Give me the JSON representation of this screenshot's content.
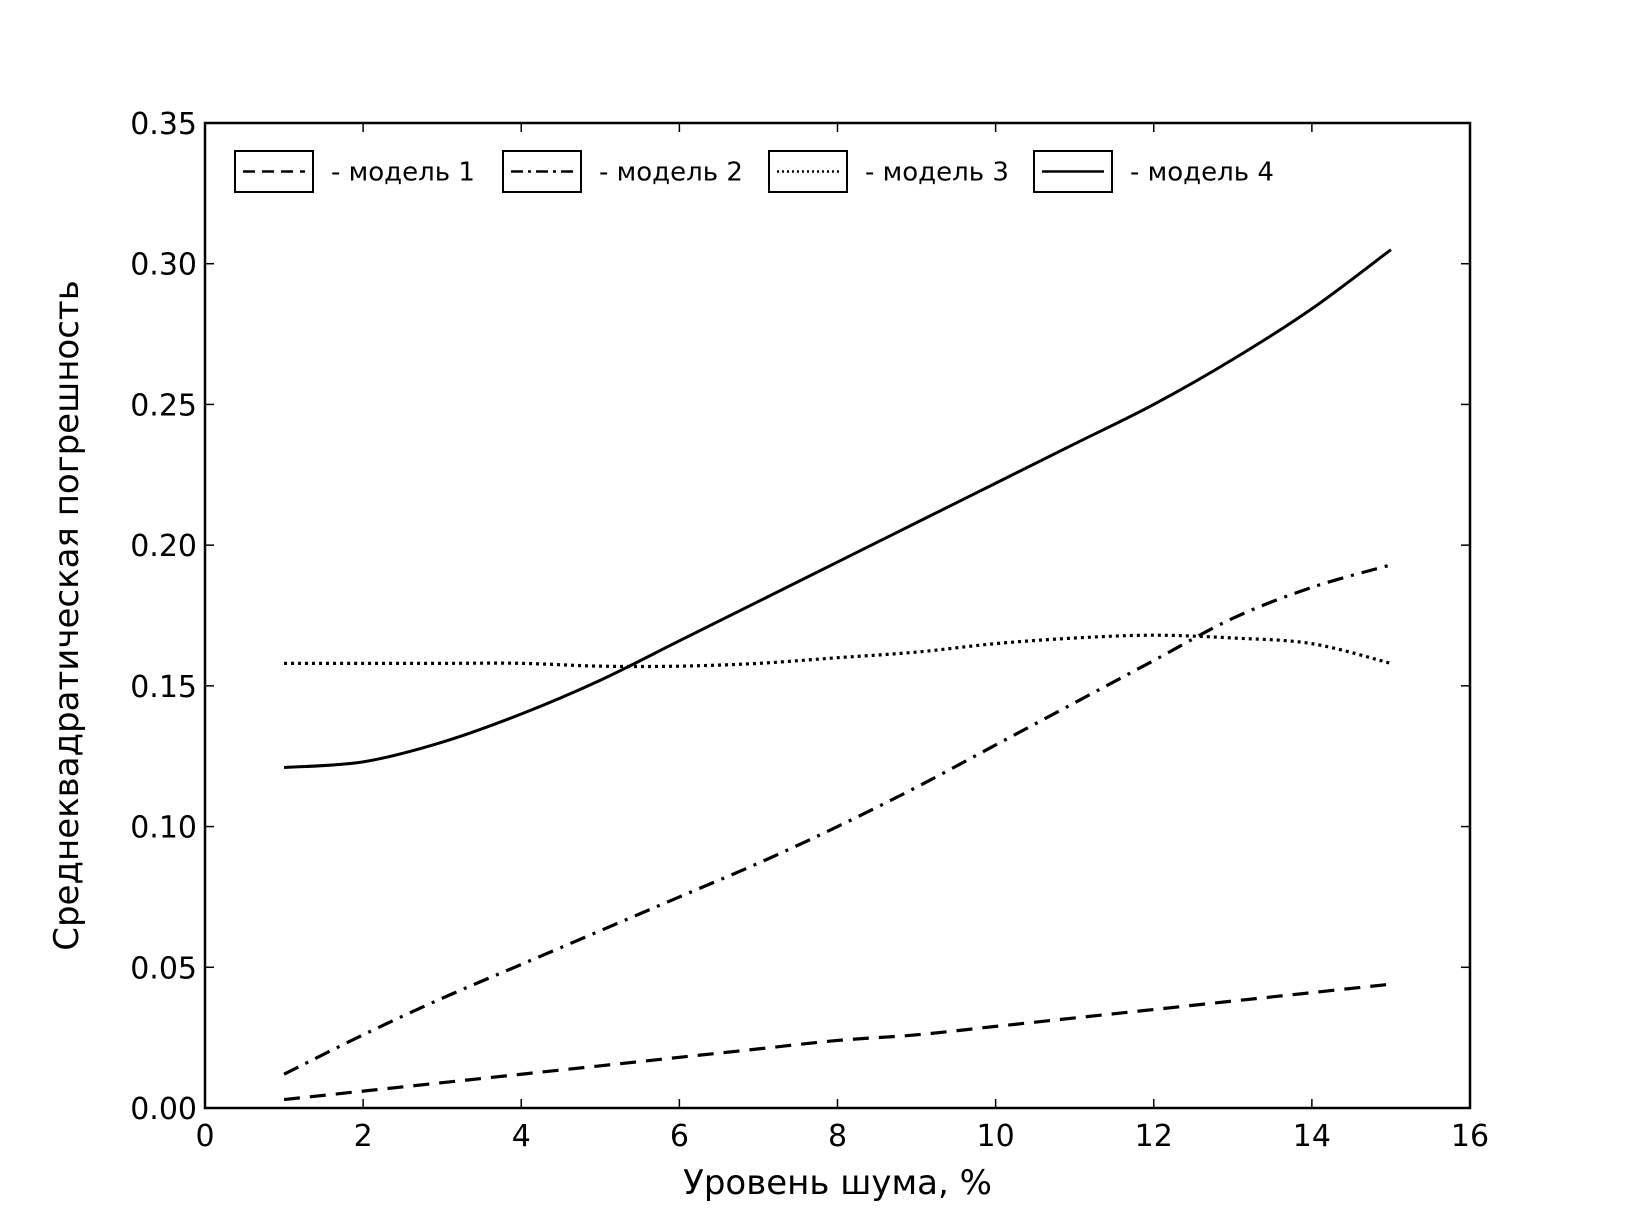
{
  "chart_data": {
    "type": "line",
    "xlabel": "Уровень шума, %",
    "ylabel": "Среднеквадратическая погрешность",
    "xlim": [
      0,
      16
    ],
    "ylim": [
      0,
      0.35
    ],
    "xticks": [
      "0",
      "2",
      "4",
      "6",
      "8",
      "10",
      "12",
      "14",
      "16"
    ],
    "yticks": [
      "0.00",
      "0.05",
      "0.10",
      "0.15",
      "0.20",
      "0.25",
      "0.30",
      "0.35"
    ],
    "grid": false,
    "legend_position": "top",
    "legend_columns": 4,
    "series": [
      {
        "name": "- модель 1",
        "style": "dashed",
        "color": "#000000",
        "x": [
          1,
          2,
          3,
          4,
          5,
          6,
          7,
          8,
          9,
          10,
          11,
          12,
          13,
          14,
          15
        ],
        "y": [
          0.003,
          0.006,
          0.009,
          0.012,
          0.015,
          0.018,
          0.021,
          0.024,
          0.026,
          0.029,
          0.032,
          0.035,
          0.038,
          0.041,
          0.044
        ]
      },
      {
        "name": "- модель 2",
        "style": "dashdot",
        "color": "#000000",
        "x": [
          1,
          2,
          3,
          4,
          5,
          6,
          7,
          8,
          9,
          10,
          11,
          12,
          13,
          14,
          15
        ],
        "y": [
          0.012,
          0.026,
          0.039,
          0.051,
          0.063,
          0.075,
          0.087,
          0.1,
          0.114,
          0.129,
          0.144,
          0.159,
          0.174,
          0.185,
          0.193
        ]
      },
      {
        "name": "- модель 3",
        "style": "dotted",
        "color": "#000000",
        "x": [
          1,
          2,
          3,
          4,
          5,
          6,
          7,
          8,
          9,
          10,
          11,
          12,
          13,
          14,
          15
        ],
        "y": [
          0.158,
          0.158,
          0.158,
          0.158,
          0.157,
          0.157,
          0.158,
          0.16,
          0.162,
          0.165,
          0.167,
          0.168,
          0.167,
          0.165,
          0.158
        ]
      },
      {
        "name": "- модель 4",
        "style": "solid",
        "color": "#000000",
        "x": [
          1,
          2,
          3,
          4,
          5,
          6,
          7,
          8,
          9,
          10,
          11,
          12,
          13,
          14,
          15
        ],
        "y": [
          0.121,
          0.123,
          0.13,
          0.14,
          0.152,
          0.166,
          0.18,
          0.194,
          0.208,
          0.222,
          0.236,
          0.25,
          0.266,
          0.284,
          0.305
        ]
      }
    ]
  }
}
